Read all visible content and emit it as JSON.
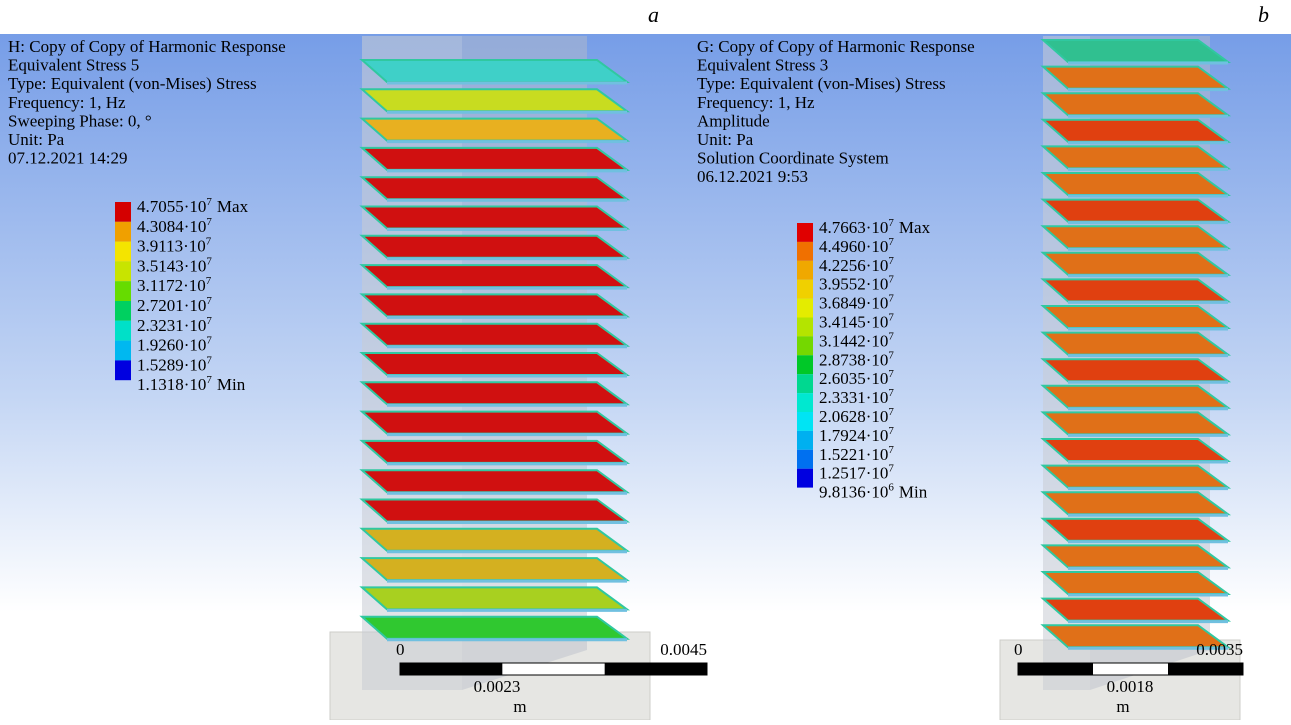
{
  "panels": [
    {
      "label": "a",
      "header": [
        "H: Copy of Copy of Harmonic Response",
        "Equivalent Stress 5",
        "Type: Equivalent (von-Mises) Stress",
        "Frequency: 1, Hz",
        "Sweeping Phase: 0, °",
        "Unit: Pa",
        "07.12.2021 14:29"
      ],
      "legend": {
        "colors": [
          "#d40000",
          "#f0a000",
          "#f4e400",
          "#c8e400",
          "#66dc00",
          "#00d060",
          "#00e0c8",
          "#00b8f0",
          "#0000e0"
        ],
        "entries": [
          {
            "mantissa": "4.7055·10",
            "exponent": "7",
            "suffix": "Max"
          },
          {
            "mantissa": "4.3084·10",
            "exponent": "7"
          },
          {
            "mantissa": "3.9113·10",
            "exponent": "7"
          },
          {
            "mantissa": "3.5143·10",
            "exponent": "7"
          },
          {
            "mantissa": "3.1172·10",
            "exponent": "7"
          },
          {
            "mantissa": "2.7201·10",
            "exponent": "7"
          },
          {
            "mantissa": "2.3231·10",
            "exponent": "7"
          },
          {
            "mantissa": "1.9260·10",
            "exponent": "7"
          },
          {
            "mantissa": "1.5289·10",
            "exponent": "7"
          },
          {
            "mantissa": "1.1318·10",
            "exponent": "7",
            "suffix": "Min"
          }
        ]
      },
      "scale_bar": {
        "start": 0,
        "end": 0.0045,
        "mid": 0.0023,
        "unit": "m"
      }
    },
    {
      "label": "b",
      "header": [
        "G: Copy of Copy of Harmonic Response",
        "Equivalent Stress 3",
        "Type: Equivalent (von-Mises) Stress",
        "Frequency: 1, Hz",
        "Amplitude",
        "Unit: Pa",
        "Solution Coordinate System",
        "06.12.2021 9:53"
      ],
      "legend": {
        "colors": [
          "#e00000",
          "#f07000",
          "#f0a800",
          "#f0d000",
          "#e4ec00",
          "#b4e400",
          "#74d800",
          "#00c828",
          "#00d890",
          "#00e8d0",
          "#00e4f4",
          "#00b0f0",
          "#0070f0",
          "#0000e0"
        ],
        "entries": [
          {
            "mantissa": "4.7663·10",
            "exponent": "7",
            "suffix": "Max"
          },
          {
            "mantissa": "4.4960·10",
            "exponent": "7"
          },
          {
            "mantissa": "4.2256·10",
            "exponent": "7"
          },
          {
            "mantissa": "3.9552·10",
            "exponent": "7"
          },
          {
            "mantissa": "3.6849·10",
            "exponent": "7"
          },
          {
            "mantissa": "3.4145·10",
            "exponent": "7"
          },
          {
            "mantissa": "3.1442·10",
            "exponent": "7"
          },
          {
            "mantissa": "2.8738·10",
            "exponent": "7"
          },
          {
            "mantissa": "2.6035·10",
            "exponent": "7"
          },
          {
            "mantissa": "2.3331·10",
            "exponent": "7"
          },
          {
            "mantissa": "2.0628·10",
            "exponent": "7"
          },
          {
            "mantissa": "1.7924·10",
            "exponent": "7"
          },
          {
            "mantissa": "1.5221·10",
            "exponent": "7"
          },
          {
            "mantissa": "1.2517·10",
            "exponent": "7"
          },
          {
            "mantissa": "9.8136·10",
            "exponent": "6",
            "suffix": "Min"
          }
        ]
      },
      "scale_bar": {
        "start": 0,
        "end": 0.0035,
        "mid": 0.0018,
        "unit": "m"
      }
    }
  ]
}
